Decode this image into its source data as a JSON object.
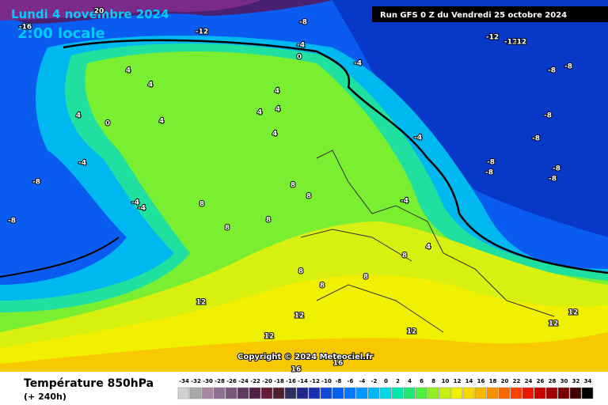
{
  "header": {
    "date": "Lundi 4 novembre 2024",
    "time": "2:00 locale",
    "run": "Run GFS 0 Z du Vendredi 25 octobre 2024"
  },
  "copyright": "Copyright © 2024 Meteociel.fr",
  "footer": {
    "title": "Température 850hPa",
    "lead": "(+ 240h)"
  },
  "legend": {
    "values": [
      -34,
      -32,
      -30,
      -28,
      -26,
      -24,
      -22,
      -20,
      -18,
      -16,
      -14,
      -12,
      -10,
      -8,
      -6,
      -4,
      -2,
      0,
      2,
      4,
      6,
      8,
      10,
      12,
      14,
      16,
      18,
      20,
      22,
      24,
      26,
      28,
      30,
      32,
      34
    ],
    "colors": [
      "#d0d0d0",
      "#a8a8a8",
      "#a888a0",
      "#907090",
      "#785878",
      "#603860",
      "#502048",
      "#681838",
      "#502030",
      "#303060",
      "#202890",
      "#1830b0",
      "#1048d8",
      "#0060f0",
      "#0078ff",
      "#0098ff",
      "#00b8f8",
      "#00d8e8",
      "#00e8b0",
      "#20e870",
      "#50f040",
      "#90f020",
      "#c8f010",
      "#f0f000",
      "#f8d800",
      "#f8b800",
      "#f89000",
      "#f86800",
      "#f84000",
      "#e81800",
      "#c80000",
      "#a00000",
      "#780000",
      "#400000",
      "#000000"
    ]
  },
  "contour_labels": [
    -12,
    -8,
    -4,
    0,
    -4,
    -12,
    -12,
    -12,
    -8,
    -8,
    4,
    4,
    4,
    4,
    0,
    4,
    4,
    4,
    4,
    -4,
    -8,
    -8,
    -4,
    -4,
    8,
    8,
    8,
    8,
    8,
    -4,
    -8,
    -8,
    -8,
    -8,
    -8,
    -8,
    -4,
    4,
    8,
    8,
    8,
    8,
    12,
    12,
    12,
    12,
    12,
    12,
    16,
    16,
    20,
    -16
  ]
}
